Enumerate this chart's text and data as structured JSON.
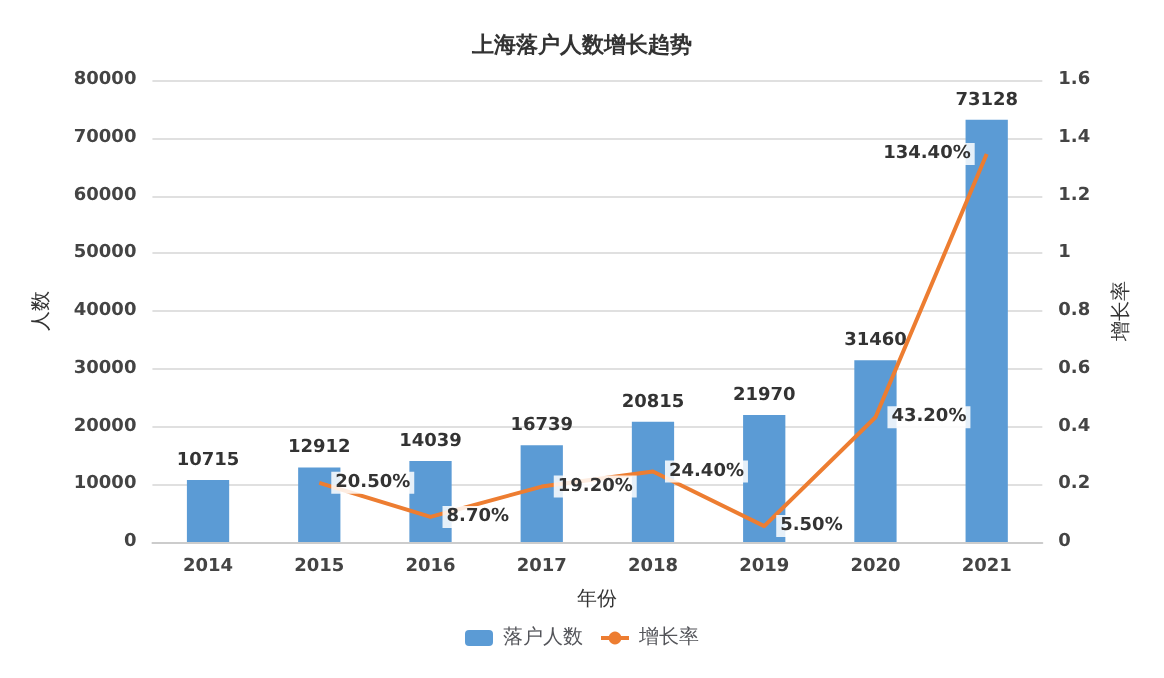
{
  "chart_data": {
    "type": "bar",
    "title": "上海落户人数增长趋势",
    "xlabel": "年份",
    "ylabel": "人数",
    "y2label": "增长率",
    "categories": [
      "2014",
      "2015",
      "2016",
      "2017",
      "2018",
      "2019",
      "2020",
      "2021"
    ],
    "series": [
      {
        "name": "落户人数",
        "color": "#5b9bd5",
        "values": [
          10715,
          12912,
          14039,
          16739,
          20815,
          21970,
          31460,
          73128
        ],
        "data_labels": true
      },
      {
        "name": "增长率",
        "type": "line",
        "axis": "y2",
        "color": "#ed7d31",
        "values": [
          null,
          0.205,
          0.087,
          0.192,
          0.244,
          0.055,
          0.432,
          1.344
        ],
        "value_labels": [
          null,
          "20.50%",
          "8.70%",
          "19.20%",
          "24.40%",
          "5.50%",
          "43.20%",
          "134.40%"
        ]
      }
    ],
    "ylim": [
      0,
      80000
    ],
    "yticks": [
      0,
      10000,
      20000,
      30000,
      40000,
      50000,
      60000,
      70000,
      80000
    ],
    "y2lim": [
      0,
      1.6
    ],
    "y2ticks": [
      0,
      0.2,
      0.4,
      0.6,
      0.8,
      1,
      1.2,
      1.4,
      1.6
    ],
    "grid": "y",
    "legend": "bottom",
    "marker": "none"
  }
}
